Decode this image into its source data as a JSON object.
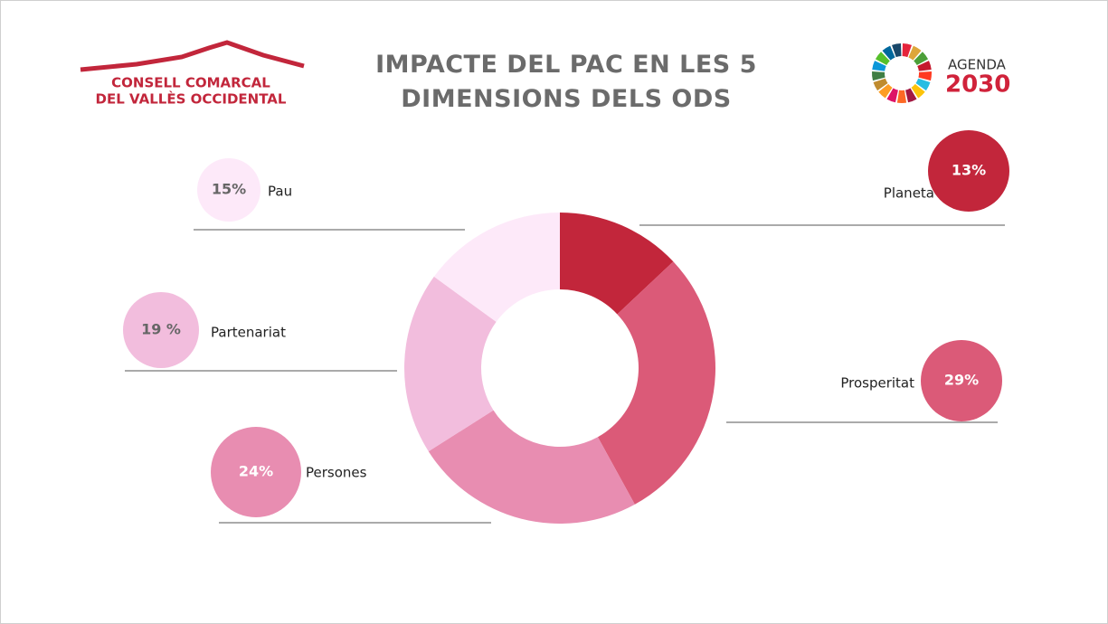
{
  "chart_data": {
    "type": "pie",
    "title": "IMPACTE DEL PAC EN LES 5 DIMENSIONS DELS ODS",
    "logos": {
      "left": [
        "CONSELL COMARCAL",
        "DEL VALLÈS OCCIDENTAL"
      ],
      "right": [
        "AGENDA",
        "2030"
      ]
    },
    "categories": [
      "Planeta",
      "Prosperitat",
      "Persones",
      "Partenariat",
      "Pau"
    ],
    "values": [
      13,
      29,
      24,
      19,
      15
    ],
    "value_labels": [
      "13%",
      "29%",
      "24%",
      "19 %",
      "15%"
    ],
    "colors": [
      "#c2263b",
      "#db5a78",
      "#e88db1",
      "#f2bddd",
      "#fde9f9"
    ],
    "donut": true
  }
}
